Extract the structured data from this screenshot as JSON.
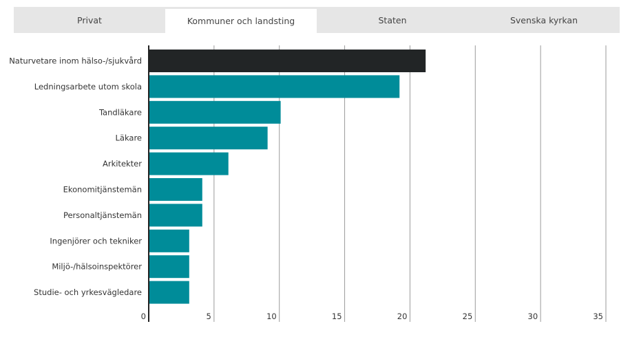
{
  "tabs": [
    {
      "label": "Privat",
      "active": false
    },
    {
      "label": "Kommuner och landsting",
      "active": true
    },
    {
      "label": "Staten",
      "active": false
    },
    {
      "label": "Svenska kyrkan",
      "active": false
    }
  ],
  "colors": {
    "highlight_bar": "#222526",
    "bar": "#008c99",
    "grid": "#9a9a9a",
    "axis": "#222222",
    "tab_bar": "#e6e6e6"
  },
  "chart_data": {
    "type": "bar",
    "orientation": "horizontal",
    "title": "",
    "xlabel": "",
    "ylabel": "",
    "categories": [
      "Naturvetare inom hälso-/sjukvård",
      "Ledningsarbete utom skola",
      "Tandläkare",
      "Läkare",
      "Arkitekter",
      "Ekonomitjänstemän",
      "Personaltjänstemän",
      "Ingenjörer och tekniker",
      "Miljö-/hälsoinspektörer",
      "Studie- och yrkesvägledare"
    ],
    "values": [
      21.2,
      19.2,
      10.1,
      9.1,
      6.1,
      4.1,
      4.1,
      3.1,
      3.1,
      3.1
    ],
    "highlight_index": 0,
    "xlim": [
      0,
      35
    ],
    "xticks": [
      0,
      5,
      10,
      15,
      20,
      25,
      30,
      35
    ],
    "grid": true
  }
}
